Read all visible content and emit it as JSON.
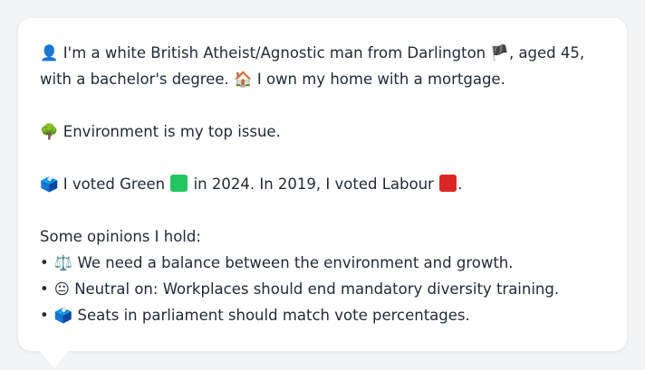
{
  "bio": {
    "person_icon": "👤",
    "line1": "I'm a white British Atheist/Agnostic man from Darlington",
    "flag_icon": "🏴",
    "line1_tail": ", aged 45,",
    "line2": "with a bachelor's degree.",
    "home_icon": "🏠",
    "line2_tail": "I own my home with a mortgage."
  },
  "issue": {
    "icon": "🌳",
    "text": "Environment is my top issue."
  },
  "votes": {
    "icon": "🗳️",
    "text_a": "I voted Green",
    "green_color": "#22c55e",
    "text_b": "in 2024. In 2019, I voted Labour",
    "red_color": "#dc2626",
    "text_c": "."
  },
  "opinions": {
    "heading": "Some opinions I hold:",
    "bullet": "•",
    "items": [
      {
        "icon": "⚖️",
        "text": "We need a balance between the environment and growth."
      },
      {
        "icon": "😐",
        "text": "Neutral on: Workplaces should end mandatory diversity training."
      },
      {
        "icon": "🗳️",
        "text": "Seats in parliament should match vote percentages."
      }
    ]
  }
}
